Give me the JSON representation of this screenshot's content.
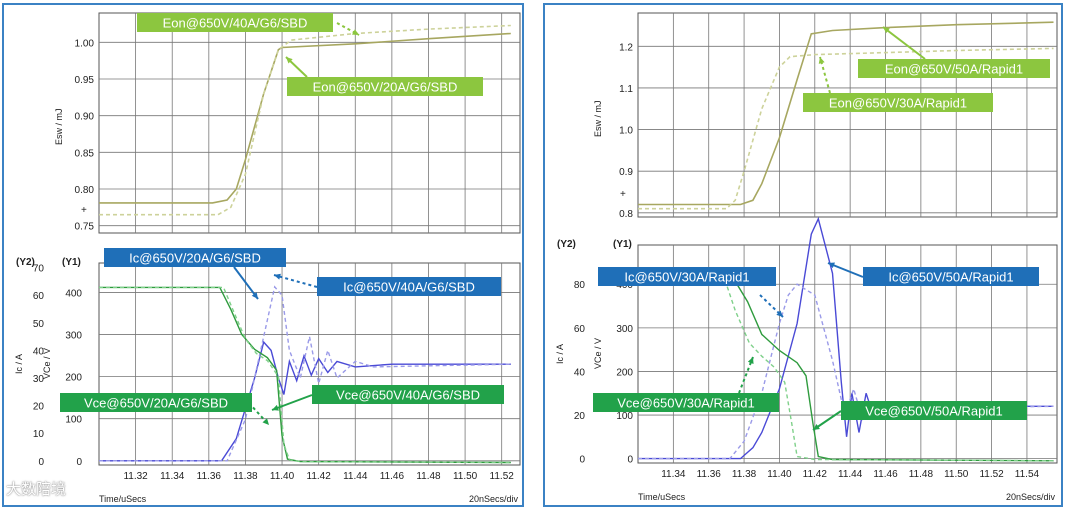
{
  "colors": {
    "esw": "#a7a760",
    "esw_dashed": "#cdd29a",
    "ic": "#4a4ad6",
    "ic_dashed": "#9a9ae8",
    "vce": "#2f9b3e",
    "vce_dashed": "#7fd08a",
    "label_green": "#8cc63f",
    "label_blue": "#1f6fb8",
    "label_dgreen": "#22a24a",
    "frame": "#3b82c4"
  },
  "watermark": "大数陪境",
  "chart_data": [
    {
      "type": "line",
      "id": "left",
      "x_label": "Time/uSecs",
      "x_div": "20nSecs/div",
      "x_ticks": [
        "11.32",
        "11.34",
        "11.36",
        "11.38",
        "11.40",
        "11.42",
        "11.44",
        "11.46",
        "11.48",
        "11.50",
        "11.52"
      ],
      "top": {
        "ylabel": "Esw / mJ",
        "y_ticks": [
          "1.00",
          "0.95",
          "0.90",
          "0.85",
          "0.80",
          "0.75"
        ],
        "ylim": [
          0.74,
          1.04
        ],
        "series": [
          {
            "name": "Eon@650V/20A/G6/SBD",
            "style": "solid",
            "x": [
              11.3,
              11.362,
              11.37,
              11.375,
              11.38,
              11.39,
              11.398,
              11.4,
              11.44,
              11.48,
              11.525
            ],
            "y": [
              0.781,
              0.781,
              0.785,
              0.8,
              0.84,
              0.93,
              0.99,
              0.993,
              0.998,
              1.005,
              1.012
            ]
          },
          {
            "name": "Eon@650V/40A/G6/SBD",
            "style": "dashed",
            "x": [
              11.3,
              11.365,
              11.372,
              11.38,
              11.39,
              11.398,
              11.405,
              11.44,
              11.48,
              11.525
            ],
            "y": [
              0.765,
              0.765,
              0.775,
              0.82,
              0.93,
              0.99,
              1.003,
              1.012,
              1.018,
              1.023
            ]
          }
        ],
        "labels": [
          "Eon@650V/40A/G6/SBD",
          "Eon@650V/20A/G6/SBD"
        ]
      },
      "bottom": {
        "ylabel_y1": "VCe / V",
        "ylabel_y2": "Ic / A",
        "y1_tag": "(Y1)",
        "y2_tag": "(Y2)",
        "y1_ticks": [
          "400",
          "300",
          "200",
          "100",
          "0"
        ],
        "y2_ticks": [
          "70",
          "60",
          "50",
          "40",
          "30",
          "20",
          "10",
          "0"
        ],
        "y1lim": [
          -10,
          470
        ],
        "series": [
          {
            "name": "Ic@650V/20A/G6/SBD",
            "style": "solid",
            "axis": "Y2",
            "x": [
              11.3,
              11.367,
              11.375,
              11.385,
              11.39,
              11.394,
              11.398,
              11.401,
              11.404,
              11.408,
              11.412,
              11.416,
              11.42,
              11.425,
              11.43,
              11.44,
              11.46,
              11.525
            ],
            "y": [
              0,
              0,
              8,
              30,
              43,
              40,
              30,
              24,
              36,
              29,
              38,
              31,
              37,
              32,
              36,
              34,
              35,
              35
            ]
          },
          {
            "name": "Ic@650V/40A/G6/SBD",
            "style": "dashed",
            "axis": "Y2",
            "x": [
              11.3,
              11.37,
              11.38,
              11.39,
              11.396,
              11.4,
              11.404,
              11.41,
              11.415,
              11.42,
              11.425,
              11.43,
              11.44,
              11.45,
              11.525
            ],
            "y": [
              0,
              0,
              15,
              45,
              63,
              60,
              40,
              30,
              45,
              28,
              40,
              30,
              36,
              34,
              35
            ]
          },
          {
            "name": "Vce@650V/20A/G6/SBD",
            "style": "solid",
            "axis": "Y1",
            "x": [
              11.3,
              11.366,
              11.372,
              11.378,
              11.385,
              11.392,
              11.397,
              11.4,
              11.403,
              11.41,
              11.525
            ],
            "y": [
              412,
              412,
              360,
              300,
              265,
              245,
              215,
              60,
              4,
              -2,
              -4
            ]
          },
          {
            "name": "Vce@650V/40A/G6/SBD",
            "style": "dashed",
            "axis": "Y1",
            "x": [
              11.3,
              11.368,
              11.374,
              11.38,
              11.386,
              11.392,
              11.398,
              11.401,
              11.404,
              11.41,
              11.525
            ],
            "y": [
              412,
              412,
              350,
              290,
              255,
              238,
              200,
              40,
              2,
              -2,
              -4
            ]
          }
        ],
        "labels": [
          "Ic@650V/20A/G6/SBD",
          "Ic@650V/40A/G6/SBD",
          "Vce@650V/20A/G6/SBD",
          "Vce@650V/40A/G6/SBD"
        ]
      }
    },
    {
      "type": "line",
      "id": "right",
      "x_label": "Time/uSecs",
      "x_div": "20nSecs/div",
      "x_ticks": [
        "11.34",
        "11.36",
        "11.38",
        "11.40",
        "11.42",
        "11.44",
        "11.46",
        "11.48",
        "11.50",
        "11.52",
        "11.54"
      ],
      "top": {
        "ylabel": "Esw / mJ",
        "y_ticks": [
          "1.2",
          "1.1",
          "1.0",
          "0.9",
          "0.8"
        ],
        "ylim": [
          0.79,
          1.28
        ],
        "series": [
          {
            "name": "Eon@650V/50A/Rapid1",
            "style": "solid",
            "x": [
              11.32,
              11.378,
              11.385,
              11.39,
              11.4,
              11.41,
              11.418,
              11.43,
              11.46,
              11.5,
              11.555
            ],
            "y": [
              0.82,
              0.82,
              0.83,
              0.87,
              0.98,
              1.12,
              1.23,
              1.238,
              1.245,
              1.252,
              1.258
            ]
          },
          {
            "name": "Eon@650V/30A/Rapid1",
            "style": "dashed",
            "x": [
              11.32,
              11.37,
              11.375,
              11.38,
              11.39,
              11.4,
              11.406,
              11.42,
              11.46,
              11.5,
              11.555
            ],
            "y": [
              0.81,
              0.81,
              0.83,
              0.9,
              1.05,
              1.15,
              1.175,
              1.18,
              1.185,
              1.19,
              1.195
            ]
          }
        ],
        "labels": [
          "Eon@650V/50A/Rapid1",
          "Eon@650V/30A/Rapid1"
        ]
      },
      "bottom": {
        "ylabel_y1": "VCe / V",
        "ylabel_y2": "Ic / A",
        "y1_tag": "(Y1)",
        "y2_tag": "(Y2)",
        "y1_ticks": [
          "400",
          "300",
          "200",
          "100",
          "0"
        ],
        "y2_ticks": [
          "80",
          "60",
          "40",
          "20",
          "0"
        ],
        "y1lim": [
          -10,
          490
        ],
        "series": [
          {
            "name": "Ic@650V/50A/Rapid1",
            "style": "solid",
            "axis": "Y2",
            "x": [
              11.32,
              11.378,
              11.385,
              11.39,
              11.4,
              11.41,
              11.418,
              11.422,
              11.43,
              11.435,
              11.438,
              11.441,
              11.445,
              11.449,
              11.453,
              11.46,
              11.47,
              11.555
            ],
            "y": [
              0,
              0,
              5,
              12,
              32,
              62,
              103,
              110,
              85,
              35,
              10,
              30,
              12,
              30,
              20,
              26,
              24,
              24
            ]
          },
          {
            "name": "Ic@650V/30A/Rapid1",
            "style": "dashed",
            "axis": "Y2",
            "x": [
              11.32,
              11.372,
              11.38,
              11.39,
              11.4,
              11.405,
              11.41,
              11.42,
              11.43,
              11.437,
              11.442,
              11.447,
              11.46,
              11.47,
              11.555
            ],
            "y": [
              0,
              0,
              8,
              30,
              62,
              75,
              80,
              75,
              45,
              20,
              32,
              18,
              25,
              23,
              24
            ]
          },
          {
            "name": "Vce@650V/50A/Rapid1",
            "style": "solid",
            "axis": "Y1",
            "x": [
              11.32,
              11.376,
              11.382,
              11.39,
              11.4,
              11.41,
              11.415,
              11.419,
              11.422,
              11.43,
              11.555
            ],
            "y": [
              400,
              400,
              360,
              285,
              248,
              220,
              190,
              80,
              5,
              -2,
              -5
            ]
          },
          {
            "name": "Vce@650V/30A/Rapid1",
            "style": "dashed",
            "axis": "Y1",
            "x": [
              11.32,
              11.37,
              11.375,
              11.383,
              11.39,
              11.397,
              11.403,
              11.407,
              11.41,
              11.42,
              11.555
            ],
            "y": [
              400,
              400,
              340,
              265,
              235,
              210,
              175,
              80,
              5,
              -2,
              -5
            ]
          }
        ],
        "labels": [
          "Ic@650V/30A/Rapid1",
          "Ic@650V/50A/Rapid1",
          "Vce@650V/30A/Rapid1",
          "Vce@650V/50A/Rapid1"
        ]
      }
    }
  ]
}
